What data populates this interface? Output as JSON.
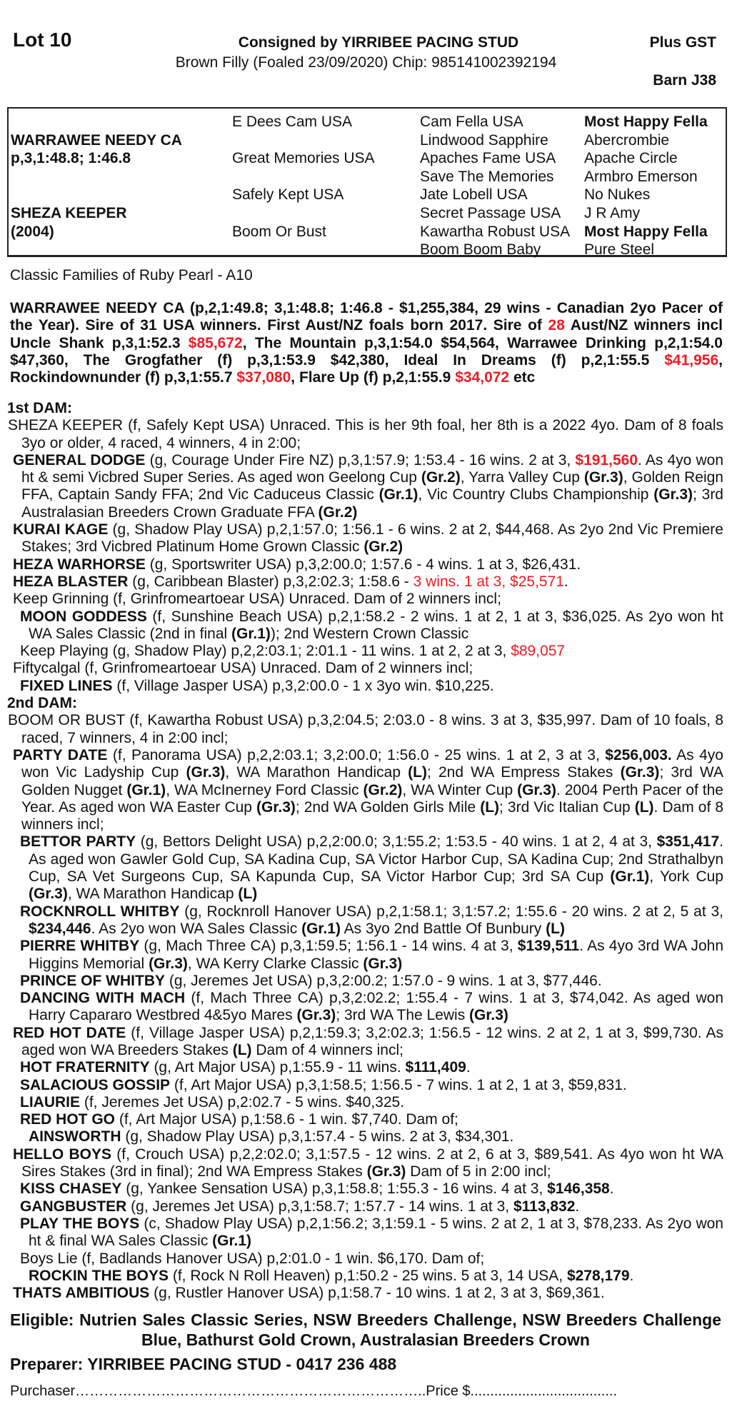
{
  "header": {
    "lot": "Lot 10",
    "consigned": "Consigned by YIRRIBEE PACING STUD",
    "gst": "Plus GST",
    "description": "Brown Filly (Foaled 23/09/2020) Chip: 985141002392194",
    "barn": "Barn J38"
  },
  "pedigree": {
    "col1": [
      "",
      "WARRAWEE NEEDY CA",
      "p,3,1:48.8; 1:46.8",
      "",
      "",
      "SHEZA KEEPER",
      "(2004)",
      ""
    ],
    "col2": [
      "E Dees Cam USA",
      "",
      "Great Memories USA",
      "",
      "Safely Kept USA",
      "",
      "Boom Or Bust",
      ""
    ],
    "col3": [
      "Cam Fella USA",
      "Lindwood Sapphire",
      "Apaches Fame USA",
      "Save The Memories",
      "Jate Lobell USA",
      "Secret Passage USA",
      "Kawartha Robust USA",
      "Boom Boom Baby"
    ],
    "col4": [
      "Most Happy Fella",
      "Abercrombie",
      "Apache Circle",
      "Armbro Emerson",
      "No Nukes",
      "J R Amy",
      "Most Happy Fella",
      "Pure Steel"
    ],
    "col4_bold_rows": [
      0,
      6
    ]
  },
  "family": "Classic Families of Ruby Pearl - A10",
  "sire": [
    {
      "t": "WARRAWEE NEEDY CA (p,2,1:49.8; 3,1:48.8; 1:46.8 - $1,255,384, 29 wins - Canadian 2yo Pacer of the Year). Sire of 31 USA winners. First Aust/NZ foals born 2017. Sire of "
    },
    {
      "t": "28",
      "s": "r"
    },
    {
      "t": " Aust/NZ winners incl Uncle Shank p,3,1:52.3 "
    },
    {
      "t": "$85,672",
      "s": "r"
    },
    {
      "t": ", The Mountain p,3,1:54.0 $54,564, Warrawee Drinking p,2,1:54.0 $47,360, The Grogfather (f) p,3,1:53.9 $42,380, Ideal In Dreams (f) p,2,1:55.5 "
    },
    {
      "t": "$41,956",
      "s": "r"
    },
    {
      "t": ", Rockindownunder (f) p,3,1:55.7 "
    },
    {
      "t": "$37,080",
      "s": "r"
    },
    {
      "t": ", Flare Up (f) p,2,1:55.9 "
    },
    {
      "t": "$34,072",
      "s": "r"
    },
    {
      "t": " etc"
    }
  ],
  "dams": [
    {
      "heading": "1st DAM:",
      "entries": [
        {
          "depth": 0,
          "segs": [
            {
              "t": "SHEZA KEEPER (f, Safely Kept USA) Unraced. This is her 9th foal, her 8th is a 2022 4yo. Dam of 8 foals 3yo or older, 4 raced, 4 winners, 4 in 2:00;"
            }
          ]
        },
        {
          "depth": 1,
          "segs": [
            {
              "t": "GENERAL DODGE",
              "s": "b"
            },
            {
              "t": " (g, Courage Under Fire NZ) p,3,1:57.9; 1:53.4 - 16 wins. 2 at 3, "
            },
            {
              "t": "$191,560",
              "s": "br"
            },
            {
              "t": ". As 4yo won ht & semi Vicbred Super Series. As aged won Geelong Cup "
            },
            {
              "t": "(Gr.2)",
              "s": "b"
            },
            {
              "t": ", Yarra Valley Cup "
            },
            {
              "t": "(Gr.3)",
              "s": "b"
            },
            {
              "t": ", Golden Reign FFA, Captain Sandy FFA; 2nd Vic Caduceus Classic "
            },
            {
              "t": "(Gr.1)",
              "s": "b"
            },
            {
              "t": ", Vic Country Clubs Championship "
            },
            {
              "t": "(Gr.3)",
              "s": "b"
            },
            {
              "t": "; 3rd Australasian Breeders Crown Graduate FFA "
            },
            {
              "t": "(Gr.2)",
              "s": "b"
            }
          ]
        },
        {
          "depth": 1,
          "segs": [
            {
              "t": "KURAI KAGE",
              "s": "b"
            },
            {
              "t": " (g, Shadow Play USA) p,2,1:57.0; 1:56.1 - 6 wins. 2 at 2, $44,468. As 2yo 2nd Vic Premiere Stakes; 3rd Vicbred Platinum Home Grown Classic "
            },
            {
              "t": "(Gr.2)",
              "s": "b"
            }
          ]
        },
        {
          "depth": 1,
          "segs": [
            {
              "t": "HEZA WARHORSE",
              "s": "b"
            },
            {
              "t": " (g, Sportswriter USA) p,3,2:00.0; 1:57.6 - 4 wins. 1 at 3, $26,431."
            }
          ]
        },
        {
          "depth": 1,
          "segs": [
            {
              "t": "HEZA BLASTER",
              "s": "b"
            },
            {
              "t": " (g, Caribbean Blaster) p,3,2:02.3; 1:58.6 - "
            },
            {
              "t": "3 wins. 1 at 3, $25,571",
              "s": "r"
            },
            {
              "t": "."
            }
          ]
        },
        {
          "depth": 1,
          "segs": [
            {
              "t": "Keep Grinning (f, Grinfromeartoear USA) Unraced. Dam of 2 winners incl;"
            }
          ]
        },
        {
          "depth": 2,
          "segs": [
            {
              "t": "MOON GODDESS",
              "s": "b"
            },
            {
              "t": " (f, Sunshine Beach USA) p,2,1:58.2 - 2 wins. 1 at 2, 1 at 3, $36,025. As 2yo won ht WA Sales Classic (2nd in final "
            },
            {
              "t": "(Gr.1)",
              "s": "b"
            },
            {
              "t": "); 2nd Western Crown Classic"
            }
          ]
        },
        {
          "depth": 2,
          "segs": [
            {
              "t": "Keep Playing (g, Shadow Play) p,2,2:03.1; 2:01.1 - 11 wins. 1 at 2, 2 at 3, "
            },
            {
              "t": "$89,057",
              "s": "r"
            }
          ]
        },
        {
          "depth": 1,
          "segs": [
            {
              "t": "Fiftycalgal (f, Grinfromeartoear USA) Unraced. Dam of 2 winners incl;"
            }
          ]
        },
        {
          "depth": 2,
          "segs": [
            {
              "t": "FIXED LINES",
              "s": "b"
            },
            {
              "t": " (f, Village Jasper USA) p,3,2:00.0 - 1 x 3yo win. $10,225."
            }
          ]
        }
      ]
    },
    {
      "heading": "2nd DAM:",
      "entries": [
        {
          "depth": 0,
          "segs": [
            {
              "t": "BOOM OR BUST (f, Kawartha Robust USA) p,3,2:04.5; 2:03.0 - 8 wins. 3 at 3, $35,997. Dam of 10 foals, 8 raced, 7 winners, 4 in 2:00 incl;"
            }
          ]
        },
        {
          "depth": 1,
          "segs": [
            {
              "t": "PARTY DATE",
              "s": "b"
            },
            {
              "t": " (f, Panorama USA) p,2,2:03.1; 3,2:00.0; 1:56.0 - 25 wins. 1 at 2, 3 at 3, "
            },
            {
              "t": "$256,003.",
              "s": "b"
            },
            {
              "t": " As 4yo won Vic Ladyship Cup "
            },
            {
              "t": "(Gr.3)",
              "s": "b"
            },
            {
              "t": ", WA Marathon Handicap "
            },
            {
              "t": "(L)",
              "s": "b"
            },
            {
              "t": "; 2nd WA Empress Stakes "
            },
            {
              "t": "(Gr.3)",
              "s": "b"
            },
            {
              "t": "; 3rd WA Golden Nugget "
            },
            {
              "t": "(Gr.1)",
              "s": "b"
            },
            {
              "t": ", WA McInerney Ford Classic "
            },
            {
              "t": "(Gr.2)",
              "s": "b"
            },
            {
              "t": ", WA Winter Cup "
            },
            {
              "t": "(Gr.3)",
              "s": "b"
            },
            {
              "t": ". 2004 Perth Pacer of the Year. As aged won WA Easter Cup "
            },
            {
              "t": "(Gr.3)",
              "s": "b"
            },
            {
              "t": "; 2nd WA Golden Girls Mile "
            },
            {
              "t": "(L)",
              "s": "b"
            },
            {
              "t": "; 3rd Vic Italian Cup "
            },
            {
              "t": "(L)",
              "s": "b"
            },
            {
              "t": ". Dam of 8 winners incl;"
            }
          ]
        },
        {
          "depth": 2,
          "segs": [
            {
              "t": "BETTOR PARTY",
              "s": "b"
            },
            {
              "t": " (g, Bettors Delight USA) p,2,2:00.0; 3,1:55.2; 1:53.5 - 40 wins. 1 at 2, 4 at 3, "
            },
            {
              "t": "$351,417",
              "s": "b"
            },
            {
              "t": ". As aged won Gawler Gold Cup, SA Kadina Cup, SA Victor Harbor Cup, SA Kadina Cup; 2nd Strathalbyn Cup, SA Vet Surgeons Cup, SA Kapunda Cup, SA Victor Harbor Cup; 3rd SA Cup "
            },
            {
              "t": "(Gr.1)",
              "s": "b"
            },
            {
              "t": ", York Cup "
            },
            {
              "t": "(Gr.3)",
              "s": "b"
            },
            {
              "t": ", WA Marathon Handicap "
            },
            {
              "t": "(L)",
              "s": "b"
            }
          ]
        },
        {
          "depth": 2,
          "segs": [
            {
              "t": "ROCKNROLL WHITBY",
              "s": "b"
            },
            {
              "t": " (g, Rocknroll Hanover USA) p,2,1:58.1; 3,1:57.2; 1:55.6 - 20 wins. 2 at 2, 5 at 3, "
            },
            {
              "t": "$234,446",
              "s": "b"
            },
            {
              "t": ". As 2yo won WA Sales Classic "
            },
            {
              "t": "(Gr.1)",
              "s": "b"
            },
            {
              "t": " As 3yo 2nd Battle Of Bunbury "
            },
            {
              "t": "(L)",
              "s": "b"
            }
          ]
        },
        {
          "depth": 2,
          "segs": [
            {
              "t": "PIERRE WHITBY",
              "s": "b"
            },
            {
              "t": " (g, Mach Three CA) p,3,1:59.5; 1:56.1 - 14 wins. 4 at 3, "
            },
            {
              "t": "$139,511",
              "s": "b"
            },
            {
              "t": ". As 4yo 3rd WA John Higgins Memorial "
            },
            {
              "t": "(Gr.3)",
              "s": "b"
            },
            {
              "t": ", WA Kerry Clarke Classic "
            },
            {
              "t": "(Gr.3)",
              "s": "b"
            }
          ]
        },
        {
          "depth": 2,
          "segs": [
            {
              "t": "PRINCE OF WHITBY",
              "s": "b"
            },
            {
              "t": " (g, Jeremes Jet USA) p,3,2:00.2; 1:57.0 - 9 wins. 1 at 3, $77,446."
            }
          ]
        },
        {
          "depth": 2,
          "segs": [
            {
              "t": "DANCING WITH MACH",
              "s": "b"
            },
            {
              "t": " (f, Mach Three CA) p,3,2:02.2; 1:55.4 - 7 wins. 1 at 3, $74,042. As aged won Harry Capararo Westbred 4&5yo Mares "
            },
            {
              "t": "(Gr.3)",
              "s": "b"
            },
            {
              "t": "; 3rd WA The Lewis "
            },
            {
              "t": "(Gr.3)",
              "s": "b"
            }
          ]
        },
        {
          "depth": 1,
          "segs": [
            {
              "t": "RED HOT DATE",
              "s": "b"
            },
            {
              "t": " (f, Village Jasper USA) p,2,1:59.3; 3,2:02.3; 1:56.5 - 12 wins. 2 at 2, 1 at 3, $99,730. As aged won WA Breeders Stakes "
            },
            {
              "t": "(L)",
              "s": "b"
            },
            {
              "t": " Dam of 4 winners incl;"
            }
          ]
        },
        {
          "depth": 2,
          "segs": [
            {
              "t": "HOT FRATERNITY",
              "s": "b"
            },
            {
              "t": " (g, Art Major USA) p,1:55.9 - 11 wins. "
            },
            {
              "t": "$111,409",
              "s": "b"
            },
            {
              "t": "."
            }
          ]
        },
        {
          "depth": 2,
          "segs": [
            {
              "t": "SALACIOUS GOSSIP",
              "s": "b"
            },
            {
              "t": " (f, Art Major USA) p,3,1:58.5; 1:56.5 - 7 wins. 1 at 2, 1 at 3, $59,831."
            }
          ]
        },
        {
          "depth": 2,
          "segs": [
            {
              "t": "LIAURIE",
              "s": "b"
            },
            {
              "t": " (f, Jeremes Jet USA) p,2:02.7 - 5 wins. $40,325."
            }
          ]
        },
        {
          "depth": 2,
          "segs": [
            {
              "t": "RED HOT GO",
              "s": "b"
            },
            {
              "t": " (f, Art Major USA) p,1:58.6 - 1 win. $7,740. Dam of;"
            }
          ]
        },
        {
          "depth": 3,
          "segs": [
            {
              "t": "AINSWORTH",
              "s": "b"
            },
            {
              "t": " (g, Shadow Play USA) p,3,1:57.4 - 5 wins. 2 at 3, $34,301."
            }
          ]
        },
        {
          "depth": 1,
          "segs": [
            {
              "t": "HELLO BOYS",
              "s": "b"
            },
            {
              "t": " (f, Crouch USA) p,2,2:02.0; 3,1:57.5 - 12 wins. 2 at 2, 6 at 3, $89,541. As 4yo won ht WA Sires Stakes (3rd in final); 2nd WA Empress Stakes "
            },
            {
              "t": "(Gr.3)",
              "s": "b"
            },
            {
              "t": " Dam of 5 in 2:00 incl;"
            }
          ]
        },
        {
          "depth": 2,
          "segs": [
            {
              "t": "KISS CHASEY",
              "s": "b"
            },
            {
              "t": " (g, Yankee Sensation USA) p,3,1:58.8; 1:55.3 - 16 wins. 4 at 3, "
            },
            {
              "t": "$146,358",
              "s": "b"
            },
            {
              "t": "."
            }
          ]
        },
        {
          "depth": 2,
          "segs": [
            {
              "t": "GANGBUSTER",
              "s": "b"
            },
            {
              "t": " (g, Jeremes Jet USA) p,3,1:58.7; 1:57.7 - 14 wins. 1 at 3, "
            },
            {
              "t": "$113,832",
              "s": "b"
            },
            {
              "t": "."
            }
          ]
        },
        {
          "depth": 2,
          "segs": [
            {
              "t": "PLAY THE BOYS",
              "s": "b"
            },
            {
              "t": " (c, Shadow Play USA) p,2,1:56.2; 3,1:59.1 - 5 wins. 2 at 2, 1 at 3, $78,233. As 2yo won ht & final WA Sales Classic "
            },
            {
              "t": "(Gr.1)",
              "s": "b"
            }
          ]
        },
        {
          "depth": 2,
          "segs": [
            {
              "t": "Boys Lie (f, Badlands Hanover USA) p,2:01.0 - 1 win. $6,170. Dam of;"
            }
          ]
        },
        {
          "depth": 3,
          "segs": [
            {
              "t": "ROCKIN THE BOYS",
              "s": "b"
            },
            {
              "t": " (f, Rock N Roll Heaven) p,1:50.2 - 25 wins. 5 at 3, 14 USA, "
            },
            {
              "t": "$278,179",
              "s": "b"
            },
            {
              "t": "."
            }
          ]
        },
        {
          "depth": 1,
          "segs": [
            {
              "t": "THATS AMBITIOUS",
              "s": "b"
            },
            {
              "t": " (g, Rustler Hanover USA) p,1:58.7 - 10 wins. 1 at 2, 3 at 3, $69,361."
            }
          ]
        }
      ]
    }
  ],
  "eligible": "Eligible: Nutrien Sales Classic Series, NSW Breeders Challenge, NSW Breeders Challenge Blue, Bathurst Gold Crown, Australasian Breeders Crown",
  "preparer": "Preparer: YIRRIBEE PACING STUD - 0417 236 488",
  "purchaser": "Purchaser………………………………………………………………..Price $.....................................",
  "colors": {
    "highlight": "#ee1c24",
    "text": "#111111"
  }
}
